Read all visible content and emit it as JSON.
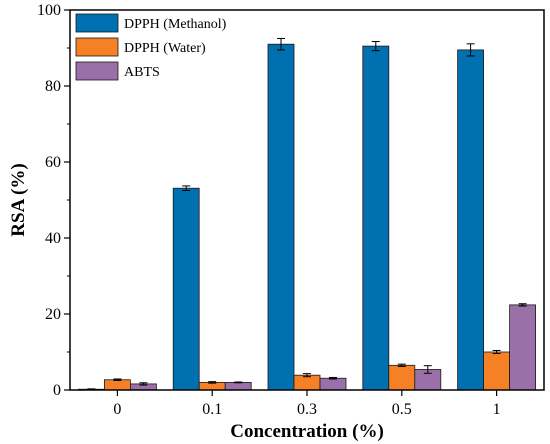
{
  "chart_data": {
    "type": "bar",
    "title": "",
    "xlabel": "Concentration (%)",
    "ylabel": "RSA (%)",
    "categories": [
      "0",
      "0.1",
      "0.3",
      "0.5",
      "1"
    ],
    "ylim": [
      0,
      100
    ],
    "yticks": [
      0,
      20,
      40,
      60,
      80,
      100
    ],
    "grid": false,
    "legend_position": "top-left",
    "series": [
      {
        "name": "DPPH (Methanol)",
        "color": "#0070B0",
        "values": [
          0.2,
          53.1,
          91.0,
          90.5,
          89.5
        ],
        "errors": [
          0.1,
          0.6,
          1.5,
          1.2,
          1.6
        ]
      },
      {
        "name": "DPPH (Water)",
        "color": "#F58025",
        "values": [
          2.7,
          2.0,
          3.9,
          6.5,
          10.0
        ],
        "errors": [
          0.2,
          0.2,
          0.4,
          0.3,
          0.4
        ]
      },
      {
        "name": "ABTS",
        "color": "#9B6FA8",
        "values": [
          1.6,
          2.0,
          3.1,
          5.4,
          22.4
        ],
        "errors": [
          0.3,
          0.1,
          0.2,
          1.0,
          0.3
        ]
      }
    ]
  }
}
